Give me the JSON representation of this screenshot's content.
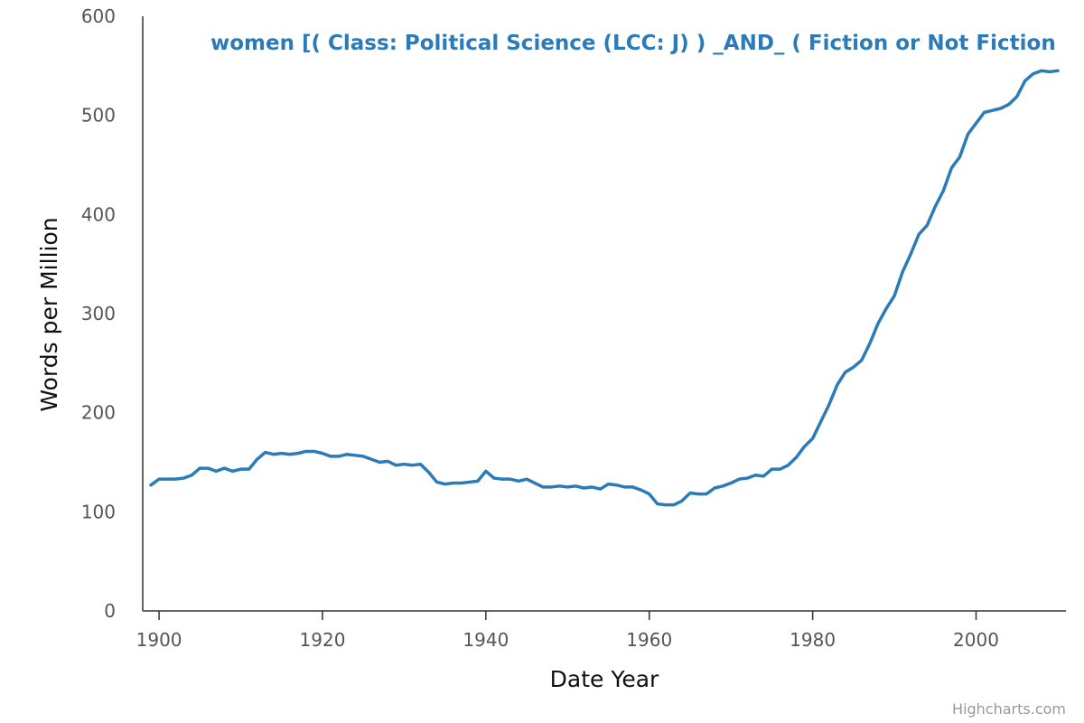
{
  "colors": {
    "series": "#2b7bb9",
    "axis": "#333333",
    "tick_text": "#555555",
    "credits": "#999999"
  },
  "chart_data": {
    "type": "line",
    "title": "women [( Class: Political Science (LCC: J) ) _AND_ ( Fiction or Not Fiction",
    "xlabel": "Date Year",
    "ylabel": "Words per Million",
    "xlim": [
      1898,
      2011
    ],
    "ylim": [
      0,
      600
    ],
    "x_ticks": [
      1900,
      1920,
      1940,
      1960,
      1980,
      2000
    ],
    "y_ticks": [
      0,
      100,
      200,
      300,
      400,
      500,
      600
    ],
    "grid": false,
    "series": [
      {
        "name": "women",
        "x": [
          1899,
          1900,
          1901,
          1902,
          1903,
          1904,
          1905,
          1906,
          1907,
          1908,
          1909,
          1910,
          1911,
          1912,
          1913,
          1914,
          1915,
          1916,
          1917,
          1918,
          1919,
          1920,
          1921,
          1922,
          1923,
          1924,
          1925,
          1926,
          1927,
          1928,
          1929,
          1930,
          1931,
          1932,
          1933,
          1934,
          1935,
          1936,
          1937,
          1938,
          1939,
          1940,
          1941,
          1942,
          1943,
          1944,
          1945,
          1946,
          1947,
          1948,
          1949,
          1950,
          1951,
          1952,
          1953,
          1954,
          1955,
          1956,
          1957,
          1958,
          1959,
          1960,
          1961,
          1962,
          1963,
          1964,
          1965,
          1966,
          1967,
          1968,
          1969,
          1970,
          1971,
          1972,
          1973,
          1974,
          1975,
          1976,
          1977,
          1978,
          1979,
          1980,
          1981,
          1982,
          1983,
          1984,
          1985,
          1986,
          1987,
          1988,
          1989,
          1990,
          1991,
          1992,
          1993,
          1994,
          1995,
          1996,
          1997,
          1998,
          1999,
          2000,
          2001,
          2002,
          2003,
          2004,
          2005,
          2006,
          2007,
          2008,
          2009,
          2010
        ],
        "values": [
          127,
          133,
          133,
          133,
          134,
          137,
          144,
          144,
          141,
          144,
          141,
          143,
          143,
          153,
          160,
          158,
          159,
          158,
          159,
          161,
          161,
          159,
          156,
          156,
          158,
          157,
          156,
          153,
          150,
          151,
          147,
          148,
          147,
          148,
          140,
          130,
          128,
          129,
          129,
          130,
          131,
          141,
          134,
          133,
          133,
          131,
          133,
          129,
          125,
          125,
          126,
          125,
          126,
          124,
          125,
          123,
          128,
          127,
          125,
          125,
          122,
          118,
          108,
          107,
          107,
          111,
          119,
          118,
          118,
          124,
          126,
          129,
          133,
          134,
          137,
          136,
          143,
          143,
          147,
          155,
          166,
          174,
          191,
          208,
          228,
          241,
          246,
          253,
          270,
          290,
          305,
          318,
          342,
          360,
          380,
          389,
          408,
          424,
          447,
          458,
          481,
          492,
          503,
          505,
          507,
          511,
          519,
          535,
          542,
          545,
          544,
          545
        ]
      }
    ]
  },
  "credits": "Highcharts.com"
}
